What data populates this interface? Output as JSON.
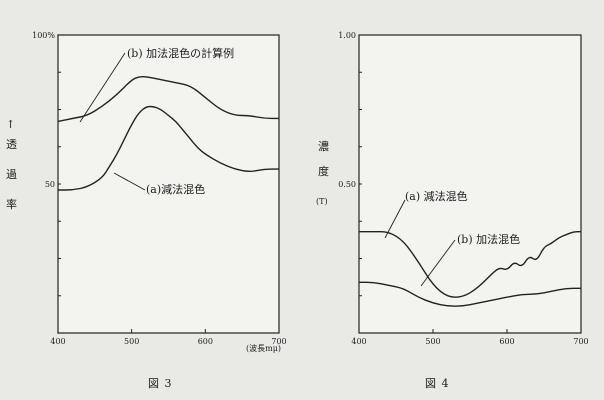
{
  "chart_data": [
    {
      "type": "line",
      "caption": "図 3",
      "y_axis_label": "透過率",
      "x_unit_label": "(波長mμ)",
      "x_ticks": [
        "400",
        "500",
        "600",
        "700"
      ],
      "y_ticks": [
        "100%",
        "50"
      ],
      "xlim": [
        400,
        700
      ],
      "ylim": [
        0,
        100
      ],
      "series": [
        {
          "name": "(b) 加法混色の計算例",
          "x": [
            400,
            420,
            440,
            460,
            480,
            500,
            510,
            520,
            540,
            560,
            580,
            600,
            620,
            640,
            660,
            680,
            700
          ],
          "y": [
            71,
            72,
            73,
            76,
            80,
            85,
            86,
            86,
            85,
            84,
            83,
            79,
            75,
            73,
            73,
            72,
            72
          ]
        },
        {
          "name": "(a)減法混色",
          "x": [
            400,
            420,
            440,
            460,
            470,
            480,
            490,
            500,
            510,
            520,
            530,
            540,
            550,
            560,
            570,
            580,
            590,
            600,
            620,
            640,
            660,
            680,
            700
          ],
          "y": [
            48,
            48,
            49,
            52,
            56,
            60,
            65,
            70,
            74,
            76,
            76,
            75,
            73,
            71,
            68,
            65,
            62,
            60,
            57,
            55,
            54,
            55,
            55
          ]
        }
      ]
    },
    {
      "type": "line",
      "caption": "図 4",
      "y_axis_label": "濃度",
      "y_unit_label": "(T)",
      "x_ticks": [
        "400",
        "500",
        "600",
        "700"
      ],
      "y_ticks": [
        "1.00",
        "0.50"
      ],
      "xlim": [
        400,
        700
      ],
      "ylim": [
        0,
        1.0
      ],
      "series": [
        {
          "name": "(a) 減法混色",
          "x": [
            400,
            420,
            440,
            460,
            480,
            500,
            520,
            540,
            560,
            580,
            590,
            600,
            610,
            620,
            630,
            640,
            650,
            660,
            670,
            680,
            690,
            700
          ],
          "y": [
            0.34,
            0.34,
            0.34,
            0.31,
            0.24,
            0.16,
            0.12,
            0.12,
            0.15,
            0.2,
            0.22,
            0.21,
            0.24,
            0.22,
            0.26,
            0.24,
            0.29,
            0.3,
            0.32,
            0.33,
            0.34,
            0.34
          ]
        },
        {
          "name": "(b) 加法混色",
          "x": [
            400,
            420,
            440,
            460,
            480,
            500,
            520,
            540,
            560,
            580,
            600,
            620,
            640,
            660,
            680,
            700
          ],
          "y": [
            0.17,
            0.17,
            0.16,
            0.15,
            0.12,
            0.1,
            0.09,
            0.09,
            0.1,
            0.11,
            0.12,
            0.13,
            0.13,
            0.14,
            0.15,
            0.15
          ]
        }
      ]
    }
  ]
}
